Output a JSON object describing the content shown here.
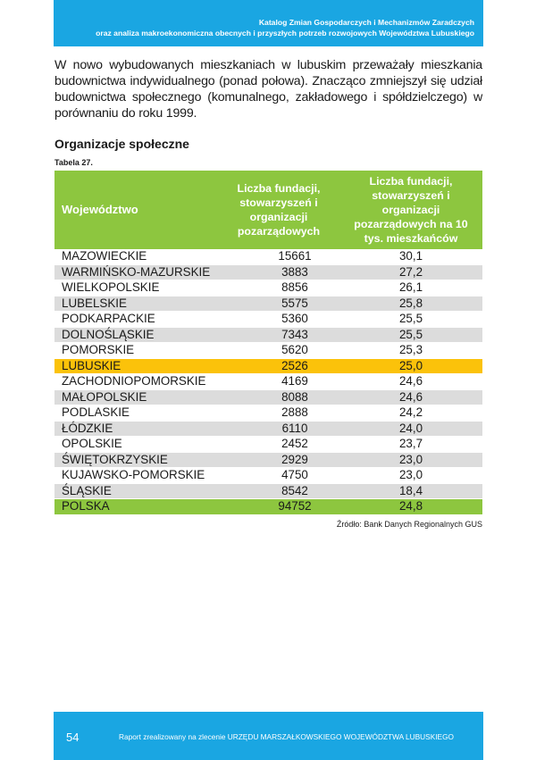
{
  "header": {
    "line1": "Katalog Zmian Gospodarczych i Mechanizmów Zaradczych",
    "line2": "oraz analiza makroekonomiczna obecnych i przyszłych potrzeb rozwojowych Województwa Lubuskiego"
  },
  "intro_text": "W nowo wybudowanych mieszkaniach w lubuskim przeważały mieszkania budownictwa indywidualnego (ponad połowa). Znacząco zmniejszył się udział budownictwa społecznego (komunalnego, zakładowego i spółdzielczego) w porównaniu do roku 1999.",
  "section_title": "Organizacje społeczne",
  "table": {
    "label": "Tabela 27.",
    "headers": {
      "region": "Województwo",
      "count": "Liczba fundacji, stowarzyszeń i organizacji pozarządowych",
      "rate": "Liczba fundacji, stowarzyszeń i organizacji pozarządowych na 10 tys. mieszkańców"
    },
    "rows": [
      {
        "region": "MAZOWIECKIE",
        "count": "15661",
        "rate": "30,1"
      },
      {
        "region": "WARMIŃSKO-MAZURSKIE",
        "count": "3883",
        "rate": "27,2"
      },
      {
        "region": "WIELKOPOLSKIE",
        "count": "8856",
        "rate": "26,1"
      },
      {
        "region": "LUBELSKIE",
        "count": "5575",
        "rate": "25,8"
      },
      {
        "region": "PODKARPACKIE",
        "count": "5360",
        "rate": "25,5"
      },
      {
        "region": "DOLNOŚLĄSKIE",
        "count": "7343",
        "rate": "25,5"
      },
      {
        "region": "POMORSKIE",
        "count": "5620",
        "rate": "25,3"
      },
      {
        "region": "LUBUSKIE",
        "count": "2526",
        "rate": "25,0"
      },
      {
        "region": "ZACHODNIOPOMORSKIE",
        "count": "4169",
        "rate": "24,6"
      },
      {
        "region": "MAŁOPOLSKIE",
        "count": "8088",
        "rate": "24,6"
      },
      {
        "region": "PODLASKIE",
        "count": "2888",
        "rate": "24,2"
      },
      {
        "region": "ŁÓDZKIE",
        "count": "6110",
        "rate": "24,0"
      },
      {
        "region": "OPOLSKIE",
        "count": "2452",
        "rate": "23,7"
      },
      {
        "region": "ŚWIĘTOKRZYSKIE",
        "count": "2929",
        "rate": "23,0"
      },
      {
        "region": "KUJAWSKO-POMORSKIE",
        "count": "4750",
        "rate": "23,0"
      },
      {
        "region": "ŚLĄSKIE",
        "count": "8542",
        "rate": "18,4"
      },
      {
        "region": "POLSKA",
        "count": "94752",
        "rate": "24,8"
      }
    ]
  },
  "source": "Źródło: Bank Danych Regionalnych GUS",
  "footer": {
    "page_number": "54",
    "text": "Raport zrealizowany na zlecenie URZĘDU MARSZAŁKOWSKIEGO WOJEWÓDZTWA LUBUSKIEGO"
  },
  "colors": {
    "band_blue": "#1aa6e2",
    "header_green": "#8dc63f",
    "highlight_yellow": "#fbc20a",
    "stripe_grey": "#dcdcdc"
  }
}
